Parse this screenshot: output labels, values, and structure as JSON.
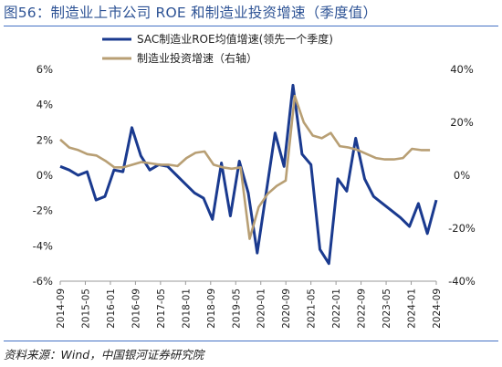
{
  "header": {
    "title": "图56：制造业上市公司 ROE 和制造业投资增速（季度值）"
  },
  "footer": {
    "source": "资料来源：Wind，中国银河证券研究院"
  },
  "colors": {
    "roe": "#1a3a8f",
    "invest": "#b89f74",
    "accent": "#2f5496"
  },
  "chart_data": {
    "type": "line",
    "title": "",
    "x_tick_labels": [
      "2014-09",
      "2015-05",
      "2016-01",
      "2016-09",
      "2017-05",
      "2018-01",
      "2018-09",
      "2019-05",
      "2020-01",
      "2020-09",
      "2021-05",
      "2022-01",
      "2022-09",
      "2023-05",
      "2024-01",
      "2024-09"
    ],
    "y_left": {
      "range": [
        -6,
        6
      ],
      "ticks": [
        "6%",
        "4%",
        "2%",
        "0%",
        "-2%",
        "-4%",
        "-6%"
      ]
    },
    "y_right": {
      "range": [
        -40,
        40
      ],
      "ticks": [
        "40%",
        "20%",
        "0%",
        "-20%",
        "-40%"
      ]
    },
    "grid": false,
    "legend": {
      "placement": "top-center"
    },
    "series": [
      {
        "name": "SAC制造业ROE均值增速(领先一个季度)",
        "axis": "left",
        "values": [
          0.5,
          0.3,
          0.0,
          0.2,
          -1.4,
          -1.2,
          0.3,
          0.2,
          2.7,
          1.1,
          0.3,
          0.6,
          0.5,
          0.0,
          -0.5,
          -1.0,
          -1.3,
          -2.5,
          0.7,
          -2.3,
          0.8,
          -1.0,
          -4.4,
          -1.0,
          2.4,
          0.5,
          5.1,
          1.2,
          0.6,
          -4.2,
          -5.0,
          -0.2,
          -0.9,
          2.1,
          -0.2,
          -1.2,
          -1.6,
          -2.0,
          -2.4,
          -2.9,
          -1.6,
          -3.3,
          -1.4
        ]
      },
      {
        "name": "制造业投资增速（右轴）",
        "axis": "right",
        "values": [
          13.5,
          10.5,
          9.5,
          8.0,
          7.5,
          5.5,
          3.0,
          3.0,
          4.0,
          5.0,
          4.5,
          4.0,
          4.0,
          3.5,
          6.5,
          8.5,
          9.0,
          4.0,
          3.0,
          2.5,
          3.0,
          -24.0,
          -12.0,
          -7.0,
          -4.0,
          -2.0,
          30.0,
          20.0,
          15.0,
          14.0,
          16.0,
          11.0,
          10.5,
          9.5,
          8.0,
          6.5,
          6.0,
          6.0,
          6.5,
          10.0,
          9.5,
          9.5
        ]
      }
    ]
  }
}
